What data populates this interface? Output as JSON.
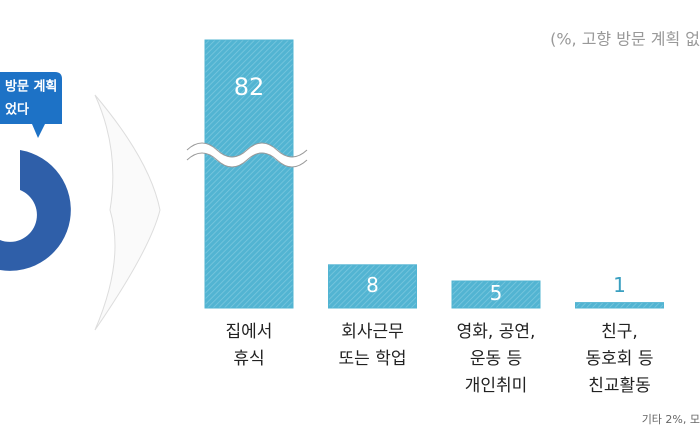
{
  "chart_data": {
    "type": "bar",
    "note": "(%, 고향 방문 계획 없",
    "footnote": "기타 2%, 모",
    "callout": [
      "방문 계획",
      "었다"
    ],
    "categories": [
      [
        "집에서",
        "휴식"
      ],
      [
        "회사근무",
        "또는 학업"
      ],
      [
        "영화, 공연,",
        "운동 등",
        "개인취미"
      ],
      [
        "친구,",
        "동호회 등",
        "친교활동"
      ]
    ],
    "values": [
      82,
      8,
      5,
      1
    ],
    "color": "#52b4d2"
  }
}
